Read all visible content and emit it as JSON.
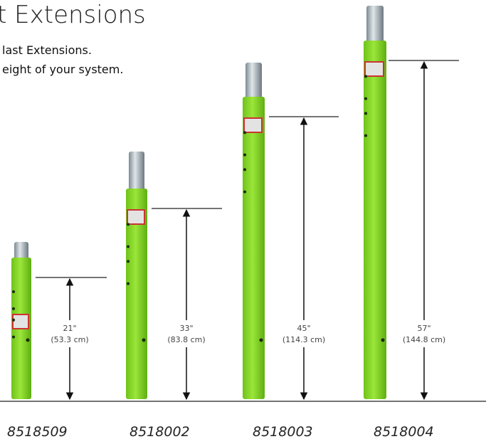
{
  "header": {
    "title": "t Extensions",
    "subtitle": [
      "last Extensions.",
      "eight of your system."
    ]
  },
  "products": [
    {
      "model": "8518509",
      "height": "21\"",
      "height_metric": "(53.3 cm)"
    },
    {
      "model": "8518002",
      "height": "33\"",
      "height_metric": "(83.8 cm)"
    },
    {
      "model": "8518003",
      "height": "45\"",
      "height_metric": "(114.3 cm)"
    },
    {
      "model": "8518004",
      "height": "57\"",
      "height_metric": "(144.8 cm)"
    }
  ]
}
